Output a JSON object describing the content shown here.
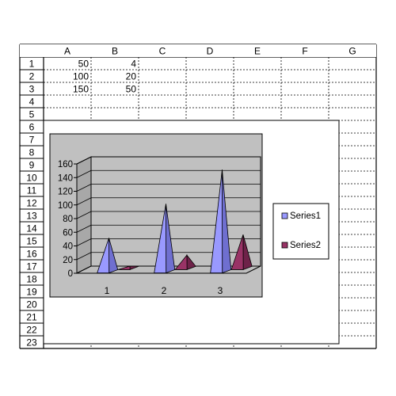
{
  "spreadsheet": {
    "columns": [
      "A",
      "B",
      "C",
      "D",
      "E",
      "F",
      "G"
    ],
    "rows": [
      "1",
      "2",
      "3",
      "4",
      "5",
      "6",
      "7",
      "8",
      "9",
      "10",
      "11",
      "12",
      "13",
      "14",
      "15",
      "16",
      "17",
      "18",
      "19",
      "20",
      "21",
      "22",
      "23"
    ],
    "cells": [
      {
        "row": 0,
        "col": 0,
        "value": "50"
      },
      {
        "row": 0,
        "col": 1,
        "value": "4"
      },
      {
        "row": 1,
        "col": 0,
        "value": "100"
      },
      {
        "row": 1,
        "col": 1,
        "value": "20"
      },
      {
        "row": 2,
        "col": 0,
        "value": "150"
      },
      {
        "row": 2,
        "col": 1,
        "value": "50"
      }
    ]
  },
  "chart_data": {
    "type": "bar",
    "style": "3d-pyramid",
    "categories": [
      "1",
      "2",
      "3"
    ],
    "series": [
      {
        "name": "Series1",
        "values": [
          50,
          100,
          150
        ],
        "color": "#9999ff"
      },
      {
        "name": "Series2",
        "values": [
          4,
          20,
          50
        ],
        "color": "#993366"
      }
    ],
    "ylim": [
      0,
      160
    ],
    "yticks": [
      "0",
      "20",
      "40",
      "60",
      "80",
      "100",
      "120",
      "140",
      "160"
    ],
    "grid": true,
    "legend": "right",
    "wall_color": "#c0c0c0",
    "area_color": "#c0c0c0"
  }
}
